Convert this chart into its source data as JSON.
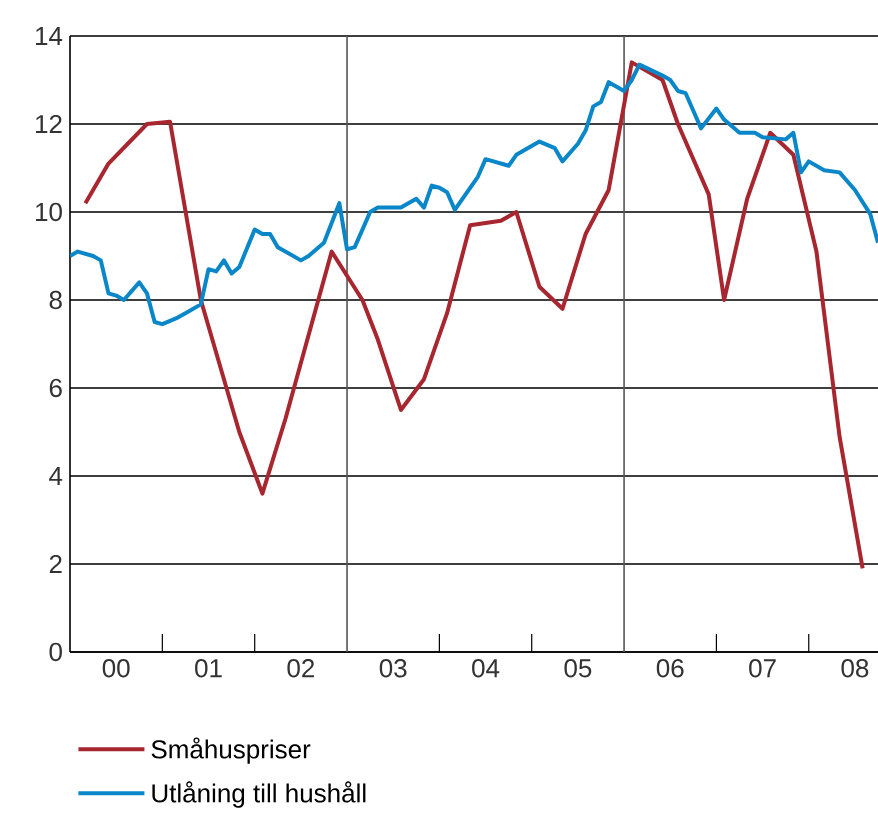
{
  "chart_data": {
    "type": "line",
    "xlim": [
      "2000-01",
      "2008-10"
    ],
    "ylim": [
      0,
      14
    ],
    "yticks": [
      0,
      2,
      4,
      6,
      8,
      10,
      12,
      14
    ],
    "xticks": [
      {
        "value": "2000-07",
        "label": "00"
      },
      {
        "value": "2001-07",
        "label": "01"
      },
      {
        "value": "2002-07",
        "label": "02"
      },
      {
        "value": "2003-07",
        "label": "03"
      },
      {
        "value": "2004-07",
        "label": "04"
      },
      {
        "value": "2005-07",
        "label": "05"
      },
      {
        "value": "2006-07",
        "label": "06"
      },
      {
        "value": "2007-07",
        "label": "07"
      },
      {
        "value": "2008-07",
        "label": "08"
      },
      {
        "value": "2001-01",
        "label": null
      },
      {
        "value": "2002-01",
        "label": null
      },
      {
        "value": "2004-01",
        "label": null
      },
      {
        "value": "2005-01",
        "label": null
      },
      {
        "value": "2007-01",
        "label": null
      },
      {
        "value": "2008-01",
        "label": null
      }
    ],
    "grid": "y",
    "legend": "bottom",
    "marker": "none",
    "line_style": "solid",
    "ref_lines": [
      {
        "axis": "x",
        "value": "2003-01",
        "color": "#555555"
      },
      {
        "axis": "x",
        "value": "2006-01",
        "color": "#555555"
      }
    ],
    "series": [
      {
        "name": "Småhuspriser",
        "color": "#a8262f",
        "x": [
          "2000-03",
          "2000-06",
          "2000-11",
          "2001-02",
          "2001-06",
          "2001-11",
          "2002-02",
          "2002-05",
          "2002-11",
          "2003-03",
          "2003-05",
          "2003-08",
          "2003-11",
          "2004-02",
          "2004-05",
          "2004-09",
          "2004-11",
          "2005-02",
          "2005-05",
          "2005-08",
          "2005-11",
          "2006-02",
          "2006-06",
          "2006-08",
          "2006-12",
          "2007-02",
          "2007-05",
          "2007-08",
          "2007-11",
          "2008-02",
          "2008-05",
          "2008-08"
        ],
        "values": [
          10.2,
          11.1,
          12.0,
          12.05,
          8.0,
          5.0,
          3.6,
          5.3,
          9.1,
          8.0,
          7.1,
          5.5,
          6.2,
          7.7,
          9.7,
          9.8,
          10.0,
          8.3,
          7.8,
          9.5,
          10.5,
          13.4,
          13.0,
          12.0,
          10.4,
          8.0,
          10.3,
          11.8,
          11.3,
          9.1,
          4.9,
          1.9
        ]
      },
      {
        "name": "Utlåning till hushåll",
        "color": "#0a87c8",
        "x": [
          "2000-01",
          "2000-02",
          "2000-04",
          "2000-05",
          "2000-06",
          "2000-07",
          "2000-08",
          "2000-10",
          "2000-11",
          "2000-12",
          "2001-01",
          "2001-03",
          "2001-04",
          "2001-06",
          "2001-07",
          "2001-08",
          "2001-09",
          "2001-10",
          "2001-11",
          "2002-01",
          "2002-02",
          "2002-03",
          "2002-04",
          "2002-07",
          "2002-08",
          "2002-10",
          "2002-12",
          "2003-01",
          "2003-02",
          "2003-03",
          "2003-04",
          "2003-05",
          "2003-06",
          "2003-08",
          "2003-10",
          "2003-11",
          "2003-12",
          "2004-01",
          "2004-02",
          "2004-03",
          "2004-06",
          "2004-07",
          "2004-10",
          "2004-11",
          "2005-02",
          "2005-04",
          "2005-05",
          "2005-07",
          "2005-08",
          "2005-09",
          "2005-10",
          "2005-11",
          "2006-01",
          "2006-02",
          "2006-03",
          "2006-06",
          "2006-07",
          "2006-08",
          "2006-09",
          "2006-10",
          "2006-11",
          "2007-01",
          "2007-02",
          "2007-04",
          "2007-06",
          "2007-07",
          "2007-10",
          "2007-11",
          "2007-12",
          "2008-01",
          "2008-03",
          "2008-05",
          "2008-07",
          "2008-09",
          "2008-10"
        ],
        "values": [
          9.0,
          9.1,
          9.0,
          8.9,
          8.15,
          8.1,
          8.0,
          8.4,
          8.15,
          7.5,
          7.45,
          7.6,
          7.7,
          7.9,
          8.7,
          8.65,
          8.9,
          8.6,
          8.75,
          9.6,
          9.5,
          9.5,
          9.2,
          8.9,
          9.0,
          9.3,
          10.2,
          9.15,
          9.2,
          9.6,
          10.0,
          10.1,
          10.1,
          10.1,
          10.3,
          10.1,
          10.6,
          10.55,
          10.45,
          10.05,
          10.8,
          11.2,
          11.05,
          11.3,
          11.6,
          11.45,
          11.15,
          11.55,
          11.85,
          12.4,
          12.5,
          12.95,
          12.75,
          13.0,
          13.35,
          13.1,
          13.0,
          12.75,
          12.7,
          12.3,
          11.9,
          12.35,
          12.1,
          11.8,
          11.8,
          11.7,
          11.65,
          11.8,
          10.9,
          11.15,
          10.95,
          10.9,
          10.5,
          9.95,
          9.3
        ]
      }
    ]
  }
}
